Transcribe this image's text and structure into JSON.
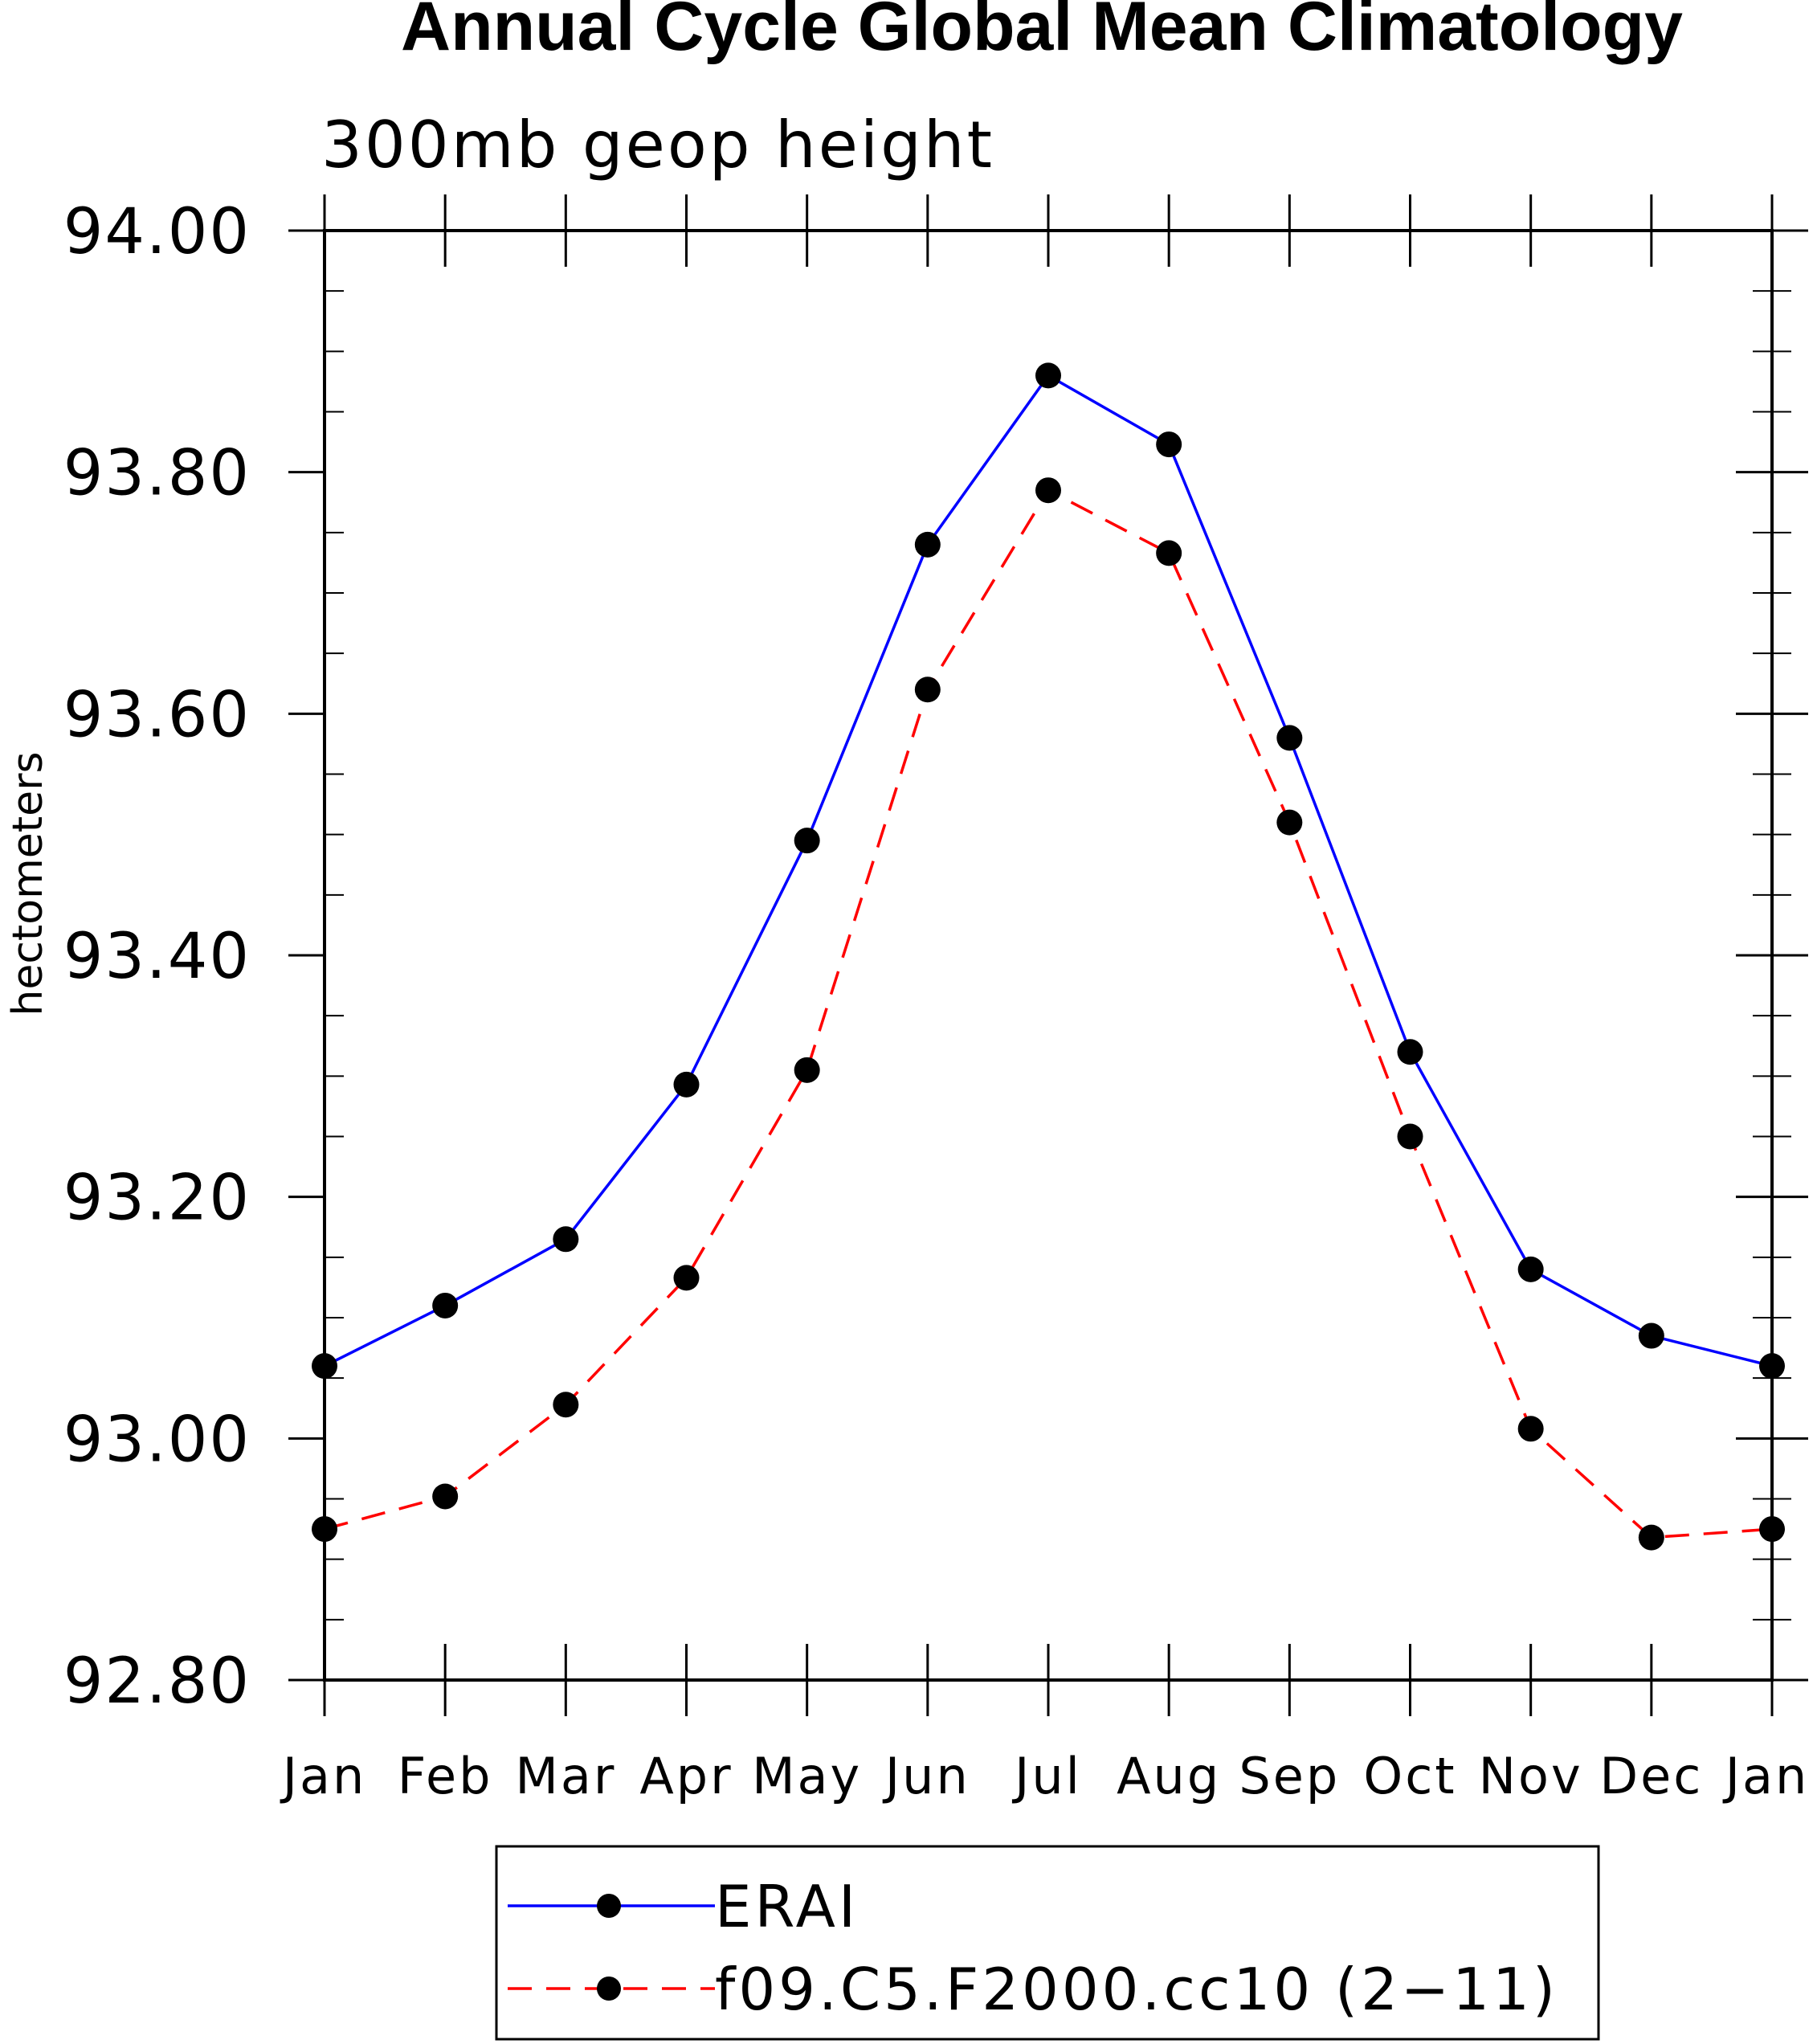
{
  "chart_data": {
    "type": "line",
    "title": "Annual Cycle Global Mean Climatology",
    "subtitle": "300mb geop height",
    "xlabel": "",
    "ylabel": "hectometers",
    "categories": [
      "Jan",
      "Feb",
      "Mar",
      "Apr",
      "May",
      "Jun",
      "Jul",
      "Aug",
      "Sep",
      "Oct",
      "Nov",
      "Dec",
      "Jan"
    ],
    "ylim": [
      92.8,
      94.0
    ],
    "yticks": [
      "92.80",
      "93.00",
      "93.20",
      "93.40",
      "93.60",
      "93.80",
      "94.00"
    ],
    "legend_position": "bottom",
    "series": [
      {
        "name": "ERAI",
        "color": "#0000ff",
        "line_style": "solid",
        "marker": "filled-circle",
        "marker_color": "#000000",
        "values": [
          93.06,
          93.11,
          93.165,
          93.293,
          93.495,
          93.74,
          93.88,
          93.823,
          93.58,
          93.32,
          93.14,
          93.085,
          93.06
        ]
      },
      {
        "name": "f09.C5.F2000.cc10 (2−11)",
        "color": "#ff0000",
        "line_style": "dashed",
        "marker": "filled-circle",
        "marker_color": "#000000",
        "values": [
          92.925,
          92.952,
          93.028,
          93.133,
          93.305,
          93.62,
          93.785,
          93.733,
          93.51,
          93.25,
          93.008,
          92.918,
          92.925
        ]
      }
    ]
  }
}
